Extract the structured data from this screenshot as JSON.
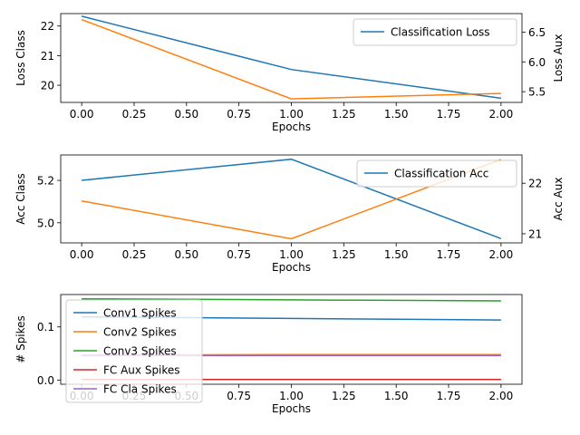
{
  "chart_data": [
    {
      "type": "line",
      "x": [
        0,
        1,
        2
      ],
      "xlabel": "Epochs",
      "xticks": [
        "0.00",
        "0.25",
        "0.50",
        "0.75",
        "1.00",
        "1.25",
        "1.50",
        "1.75",
        "2.00"
      ],
      "xlim": [
        -0.1,
        2.1
      ],
      "ylabel": "Loss Class",
      "ylabel_right": "Loss Aux",
      "ylim": [
        19.42,
        22.42
      ],
      "ylim_right": [
        5.32,
        6.81
      ],
      "yticks": [
        "20",
        "21",
        "22"
      ],
      "yticks_right": [
        "5.5",
        "6.0",
        "6.5"
      ],
      "series": [
        {
          "name": "Classification Loss",
          "axis": "left",
          "color": "#1f77b4",
          "values": [
            22.33,
            20.53,
            19.56
          ]
        },
        {
          "name": "",
          "axis": "right",
          "color": "#ff7f0e",
          "values": [
            6.71,
            5.38,
            5.47
          ]
        }
      ],
      "legend": [
        "Classification Loss"
      ],
      "legend_position": "upper right"
    },
    {
      "type": "line",
      "x": [
        0,
        1,
        2
      ],
      "xlabel": "Epochs",
      "xticks": [
        "0.00",
        "0.25",
        "0.50",
        "0.75",
        "1.00",
        "1.25",
        "1.50",
        "1.75",
        "2.00"
      ],
      "xlim": [
        -0.1,
        2.1
      ],
      "ylabel": "Acc Class",
      "ylabel_right": "Acc Aux",
      "ylim": [
        4.905,
        5.32
      ],
      "ylim_right": [
        20.82,
        22.56
      ],
      "yticks": [
        "5.0",
        "5.2"
      ],
      "yticks_right": [
        "21",
        "22"
      ],
      "series": [
        {
          "name": "Classification Acc",
          "axis": "left",
          "color": "#1f77b4",
          "values": [
            5.2,
            5.3,
            4.925
          ]
        },
        {
          "name": "",
          "axis": "right",
          "color": "#ff7f0e",
          "values": [
            21.65,
            20.9,
            22.47
          ]
        }
      ],
      "legend": [
        "Classification Acc"
      ],
      "legend_position": "upper right"
    },
    {
      "type": "line",
      "x": [
        0,
        1,
        2
      ],
      "xlabel": "Epochs",
      "xticks": [
        "0.00",
        "0.25",
        "0.50",
        "0.75",
        "1.00",
        "1.25",
        "1.50",
        "1.75",
        "2.00"
      ],
      "xlim": [
        -0.1,
        2.1
      ],
      "ylabel": "# Spikes",
      "ylim": [
        -0.008,
        0.161
      ],
      "yticks": [
        "0.0",
        "0.1"
      ],
      "series": [
        {
          "name": "Conv1 Spikes",
          "color": "#1f77b4",
          "values": [
            0.119,
            0.116,
            0.113
          ]
        },
        {
          "name": "Conv2 Spikes",
          "color": "#ff7f0e",
          "values": [
            0.047,
            0.048,
            0.048
          ]
        },
        {
          "name": "Conv3 Spikes",
          "color": "#2ca02c",
          "values": [
            0.153,
            0.151,
            0.149
          ]
        },
        {
          "name": "FC Aux Spikes",
          "color": "#d62728",
          "values": [
            0.001,
            0.001,
            0.001
          ]
        },
        {
          "name": "FC Cla Spikes",
          "color": "#9467bd",
          "values": [
            0.046,
            0.046,
            0.046
          ]
        }
      ],
      "legend": [
        "Conv1 Spikes",
        "Conv2 Spikes",
        "Conv3 Spikes",
        "FC Aux Spikes",
        "FC Cla Spikes"
      ],
      "legend_position": "upper left"
    }
  ]
}
